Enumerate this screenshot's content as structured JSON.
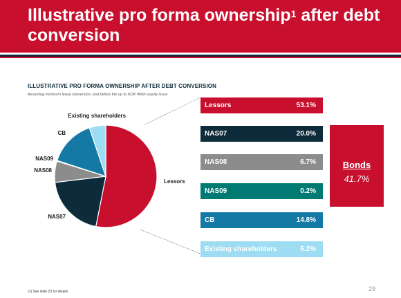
{
  "header": {
    "title_main": "Illustrative pro forma ownership",
    "title_sup": "1",
    "title_tail": " after debt",
    "title_line2": "conversion"
  },
  "chart_title": "ILLUSTRATIVE PRO FORMA OWNERSHIP AFTER DEBT CONVERSION",
  "chart_subtitle": "Assuming minimum lease conversion, and before the up to NOK 400m equity issue",
  "chart_data": {
    "type": "pie",
    "categories": [
      "Lessors",
      "NAS07",
      "NAS08",
      "NAS09",
      "CB",
      "Existing shareholders"
    ],
    "values": [
      53.1,
      20.0,
      6.7,
      0.2,
      14.8,
      5.2
    ],
    "value_labels": [
      "53.1%",
      "20.0%",
      "6.7%",
      "0.2%",
      "14.8%",
      "5.2%"
    ],
    "colors": [
      "#c8102e",
      "#0d2b3a",
      "#8c8c8c",
      "#007a73",
      "#1579a6",
      "#9ddcf2"
    ],
    "start_angle_deg": 0,
    "direction": "clockwise",
    "legend": "right"
  },
  "bonds": {
    "label": "Bonds",
    "value": "41.7%",
    "color": "#c8102e"
  },
  "footnote": "(1)   See slide 23 for details",
  "page_number": "29"
}
